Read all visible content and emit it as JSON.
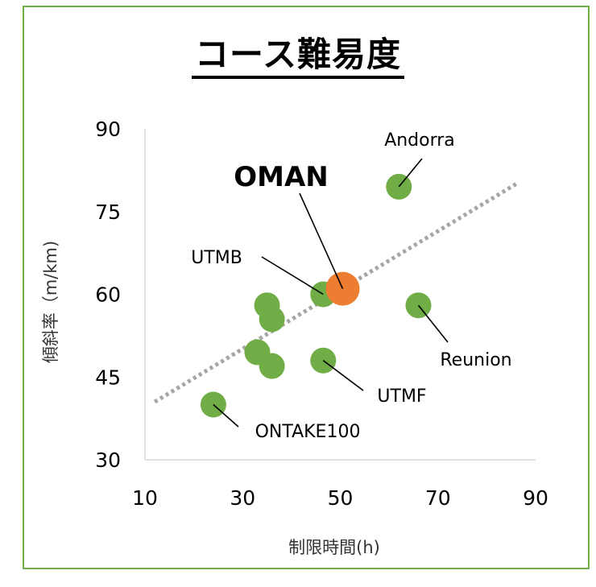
{
  "chart_data": {
    "type": "scatter",
    "title": "コース難易度",
    "xlabel": "制限時間(h)",
    "ylabel": "傾斜率（m/km)",
    "xlim": [
      10,
      90
    ],
    "ylim": [
      30,
      90
    ],
    "x_ticks": [
      "10",
      "30",
      "50",
      "70",
      "90"
    ],
    "y_ticks": [
      "90",
      "75",
      "60",
      "45",
      "30"
    ],
    "trendline": {
      "style": "dotted",
      "color": "#a6a6a6",
      "from": [
        12,
        40.5
      ],
      "to": [
        86,
        80
      ]
    },
    "colors": {
      "point": "#70ad47",
      "highlight": "#ed7d31",
      "frame": "#70ad47"
    },
    "points": [
      {
        "x": 24,
        "y": 40,
        "label": "ONTAKE100",
        "highlight": false
      },
      {
        "x": 33,
        "y": 49.5,
        "label": "",
        "highlight": false
      },
      {
        "x": 36,
        "y": 47,
        "label": "",
        "highlight": false
      },
      {
        "x": 35,
        "y": 58,
        "label": "",
        "highlight": false
      },
      {
        "x": 36,
        "y": 55.5,
        "label": "",
        "highlight": false
      },
      {
        "x": 46.5,
        "y": 60,
        "label": "UTMB",
        "highlight": false
      },
      {
        "x": 46.5,
        "y": 48,
        "label": "UTMF",
        "highlight": false
      },
      {
        "x": 62,
        "y": 79.5,
        "label": "Andorra",
        "highlight": false
      },
      {
        "x": 66,
        "y": 58,
        "label": "Reunion",
        "highlight": false
      },
      {
        "x": 50.5,
        "y": 61,
        "label": "OMAN",
        "highlight": true
      }
    ]
  }
}
